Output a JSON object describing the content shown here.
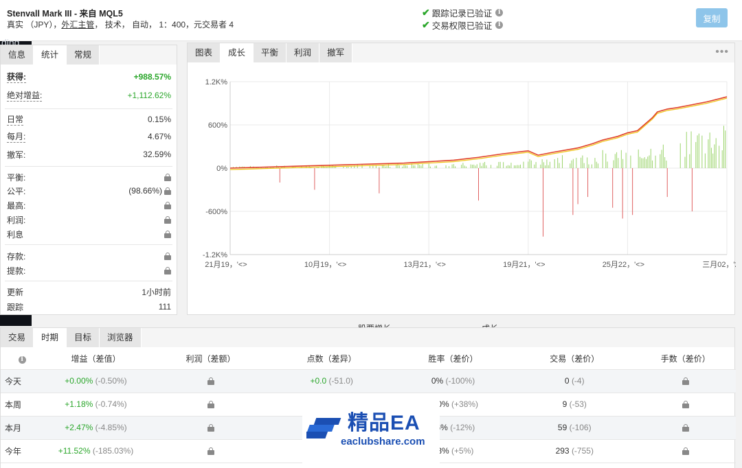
{
  "header": {
    "title": "Stenvall Mark III - 来自 MQL5",
    "meta_prefix": "真实 （JPY），",
    "meta_link": "外汇主管",
    "meta_suffix": "， 技术， 自动， 1：400，元交易者 4",
    "verify_track": "跟踪记录已验证",
    "verify_trade": "交易权限已验证",
    "copy_button": "复制"
  },
  "side_fragment": "ding",
  "stats_panel": {
    "tabs": [
      "信息",
      "统计",
      "常规"
    ],
    "active_tab": "统计",
    "rows": [
      {
        "label": "获得:",
        "value": "+988.57%"
      },
      {
        "label": "绝对增益:",
        "value": "+1,112.62%"
      },
      {
        "label": "日常",
        "value": "0.15%"
      },
      {
        "label": "每月:",
        "value": "4.67%"
      },
      {
        "label": "撤军:",
        "value": "32.59%"
      },
      {
        "label": "平衡:",
        "value": ""
      },
      {
        "label": "公平:",
        "value": "(98.66%)"
      },
      {
        "label": "最高:",
        "value": ""
      },
      {
        "label": "利润:",
        "value": ""
      },
      {
        "label": "利息",
        "value": ""
      },
      {
        "label": "存款:",
        "value": ""
      },
      {
        "label": "提款:",
        "value": ""
      },
      {
        "label": "更新",
        "value": "1小时前"
      },
      {
        "label": "跟踪",
        "value": "111"
      }
    ]
  },
  "chart_panel": {
    "tabs": [
      "图表",
      "成长",
      "平衡",
      "利润",
      "撤军"
    ],
    "active_tab": "成长",
    "more_icon": "ellipsis-icon"
  },
  "chart_data": {
    "type": "line",
    "yticks": [
      "1.2K%",
      "600%",
      "0%",
      "-600%",
      "-1.2K%"
    ],
    "ylim": [
      -1200,
      1200
    ],
    "xticks": [
      "21月19，'<>",
      "10月19，'<>",
      "13月21，'<>",
      "19月21，'<>",
      "25月22，'<>",
      "三月02，'23"
    ],
    "series": [
      {
        "name": "股票增长",
        "color": "#f0c419"
      },
      {
        "name": "成长",
        "color": "#e0402a"
      }
    ],
    "growth_x": [
      0,
      0.05,
      0.1,
      0.15,
      0.2,
      0.25,
      0.3,
      0.35,
      0.4,
      0.45,
      0.5,
      0.55,
      0.6,
      0.62,
      0.65,
      0.7,
      0.73,
      0.75,
      0.78,
      0.8,
      0.82,
      0.85,
      0.86,
      0.88,
      0.9,
      0.93,
      0.96,
      1.0
    ],
    "growth_y": [
      0,
      10,
      20,
      30,
      40,
      50,
      60,
      70,
      90,
      110,
      150,
      200,
      240,
      180,
      220,
      280,
      340,
      390,
      440,
      490,
      520,
      700,
      780,
      820,
      840,
      880,
      920,
      990
    ],
    "green_bars_level": [
      30,
      40,
      50,
      60,
      70,
      80,
      120,
      150,
      200,
      260,
      350,
      600
    ],
    "red_bars_level": [
      -200,
      -300,
      -350,
      -450,
      -950,
      -650,
      -500,
      -400,
      -550,
      -700,
      -650,
      -400,
      -600
    ],
    "grid": true,
    "legend": "bottom"
  },
  "bottom_panel": {
    "tabs": [
      "交易",
      "时期",
      "目标",
      "浏览器"
    ],
    "active_tab": "时期",
    "columns": [
      "增益（差值）",
      "利润（差额）",
      "点数（差异）",
      "胜率（差价）",
      "交易（差价）",
      "手数（差价）"
    ],
    "rows": [
      {
        "label": "今天",
        "gain": "+0.00%",
        "gain_diff": "(-0.50%)",
        "points": "+0.0",
        "points_diff": "(-51.0)",
        "winrate": "0%",
        "winrate_diff": "(-100%)",
        "trades": "0",
        "trades_diff": "(-4)"
      },
      {
        "label": "本周",
        "gain": "+1.18%",
        "gain_diff": "(-0.74%)",
        "points": "",
        "points_diff": "",
        "winrate": "100%",
        "winrate_diff": "(+38%)",
        "trades": "9",
        "trades_diff": "(-53)"
      },
      {
        "label": "本月",
        "gain": "+2.47%",
        "gain_diff": "(-4.85%)",
        "points": "",
        "points_diff": "",
        "winrate": "66%",
        "winrate_diff": "(-12%)",
        "trades": "59",
        "trades_diff": "(-106)"
      },
      {
        "label": "今年",
        "gain": "+11.52%",
        "gain_diff": "(-185.03%)",
        "points": "",
        "points_diff": "",
        "winrate": "73%",
        "winrate_diff": "(+5%)",
        "trades": "293",
        "trades_diff": "(-755)"
      }
    ]
  },
  "watermark": {
    "title": "精品EA",
    "url": "eaclubshare.com"
  }
}
